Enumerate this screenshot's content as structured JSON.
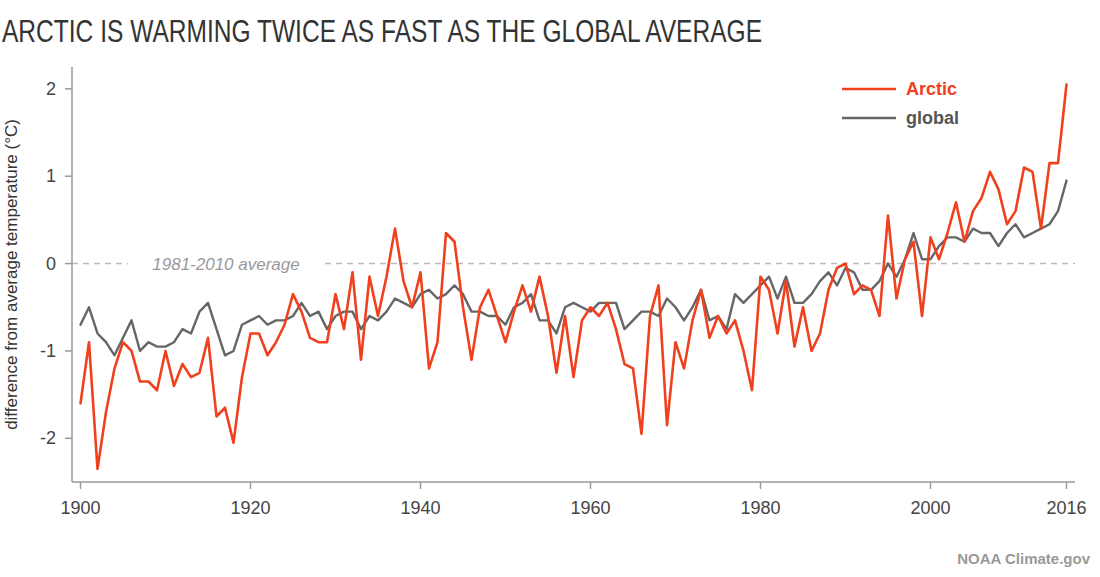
{
  "chart_data": {
    "type": "line",
    "title": "ARCTIC IS WARMING TWICE AS FAST AS THE GLOBAL AVERAGE",
    "y_label": "difference from average temperature (°C)",
    "source": "NOAA Climate.gov",
    "annotations": [
      {
        "text": "1981-2010 average",
        "y": 0
      }
    ],
    "legend": "top-right",
    "grid": false,
    "xlim": [
      1899,
      2017
    ],
    "xticks": [
      1900,
      1920,
      1940,
      1960,
      1980,
      2000,
      2016
    ],
    "ylim": [
      -2.5,
      2.25
    ],
    "yticks": [
      -2,
      -1,
      0,
      1,
      2
    ],
    "x": [
      1900,
      1901,
      1902,
      1903,
      1904,
      1905,
      1906,
      1907,
      1908,
      1909,
      1910,
      1911,
      1912,
      1913,
      1914,
      1915,
      1916,
      1917,
      1918,
      1919,
      1920,
      1921,
      1922,
      1923,
      1924,
      1925,
      1926,
      1927,
      1928,
      1929,
      1930,
      1931,
      1932,
      1933,
      1934,
      1935,
      1936,
      1937,
      1938,
      1939,
      1940,
      1941,
      1942,
      1943,
      1944,
      1945,
      1946,
      1947,
      1948,
      1949,
      1950,
      1951,
      1952,
      1953,
      1954,
      1955,
      1956,
      1957,
      1958,
      1959,
      1960,
      1961,
      1962,
      1963,
      1964,
      1965,
      1966,
      1967,
      1968,
      1969,
      1970,
      1971,
      1972,
      1973,
      1974,
      1975,
      1976,
      1977,
      1978,
      1979,
      1980,
      1981,
      1982,
      1983,
      1984,
      1985,
      1986,
      1987,
      1988,
      1989,
      1990,
      1991,
      1992,
      1993,
      1994,
      1995,
      1996,
      1997,
      1998,
      1999,
      2000,
      2001,
      2002,
      2003,
      2004,
      2005,
      2006,
      2007,
      2008,
      2009,
      2010,
      2011,
      2012,
      2013,
      2014,
      2015,
      2016
    ],
    "series": [
      {
        "name": "Arctic",
        "color": "#f0401e",
        "values": [
          -1.6,
          -0.9,
          -2.35,
          -1.7,
          -1.2,
          -0.9,
          -1.0,
          -1.35,
          -1.35,
          -1.45,
          -1.0,
          -1.4,
          -1.15,
          -1.3,
          -1.25,
          -0.85,
          -1.75,
          -1.65,
          -2.05,
          -1.3,
          -0.8,
          -0.8,
          -1.05,
          -0.9,
          -0.7,
          -0.35,
          -0.55,
          -0.85,
          -0.9,
          -0.9,
          -0.35,
          -0.75,
          -0.1,
          -1.1,
          -0.15,
          -0.6,
          -0.15,
          0.4,
          -0.2,
          -0.5,
          -0.1,
          -1.2,
          -0.9,
          0.35,
          0.25,
          -0.5,
          -1.1,
          -0.5,
          -0.3,
          -0.6,
          -0.9,
          -0.55,
          -0.25,
          -0.55,
          -0.15,
          -0.6,
          -1.25,
          -0.6,
          -1.3,
          -0.65,
          -0.5,
          -0.6,
          -0.45,
          -0.75,
          -1.15,
          -1.2,
          -1.95,
          -0.6,
          -0.25,
          -1.85,
          -0.9,
          -1.2,
          -0.65,
          -0.3,
          -0.85,
          -0.6,
          -0.8,
          -0.65,
          -1.0,
          -1.45,
          -0.15,
          -0.3,
          -0.8,
          -0.2,
          -0.95,
          -0.5,
          -1.0,
          -0.8,
          -0.3,
          -0.05,
          0.0,
          -0.35,
          -0.25,
          -0.3,
          -0.6,
          0.55,
          -0.4,
          0.05,
          0.25,
          -0.6,
          0.3,
          0.05,
          0.35,
          0.7,
          0.25,
          0.6,
          0.75,
          1.05,
          0.85,
          0.45,
          0.6,
          1.1,
          1.05,
          0.4,
          1.15,
          1.15,
          2.05
        ]
      },
      {
        "name": "global",
        "color": "#666666",
        "values": [
          -0.7,
          -0.5,
          -0.8,
          -0.9,
          -1.05,
          -0.85,
          -0.65,
          -1.0,
          -0.9,
          -0.95,
          -0.95,
          -0.9,
          -0.75,
          -0.8,
          -0.55,
          -0.45,
          -0.75,
          -1.05,
          -1.0,
          -0.7,
          -0.65,
          -0.6,
          -0.7,
          -0.65,
          -0.65,
          -0.6,
          -0.45,
          -0.6,
          -0.55,
          -0.75,
          -0.6,
          -0.55,
          -0.55,
          -0.75,
          -0.6,
          -0.65,
          -0.55,
          -0.4,
          -0.45,
          -0.5,
          -0.35,
          -0.3,
          -0.4,
          -0.35,
          -0.25,
          -0.35,
          -0.55,
          -0.55,
          -0.6,
          -0.6,
          -0.7,
          -0.5,
          -0.45,
          -0.35,
          -0.65,
          -0.65,
          -0.8,
          -0.5,
          -0.45,
          -0.5,
          -0.55,
          -0.45,
          -0.45,
          -0.45,
          -0.75,
          -0.65,
          -0.55,
          -0.55,
          -0.6,
          -0.4,
          -0.5,
          -0.65,
          -0.5,
          -0.3,
          -0.65,
          -0.6,
          -0.75,
          -0.35,
          -0.45,
          -0.35,
          -0.25,
          -0.15,
          -0.4,
          -0.15,
          -0.45,
          -0.45,
          -0.35,
          -0.2,
          -0.1,
          -0.25,
          -0.05,
          -0.1,
          -0.3,
          -0.3,
          -0.2,
          0.0,
          -0.15,
          0.05,
          0.35,
          0.05,
          0.05,
          0.2,
          0.3,
          0.3,
          0.25,
          0.4,
          0.35,
          0.35,
          0.2,
          0.35,
          0.45,
          0.3,
          0.35,
          0.4,
          0.45,
          0.6,
          0.95
        ]
      }
    ]
  }
}
